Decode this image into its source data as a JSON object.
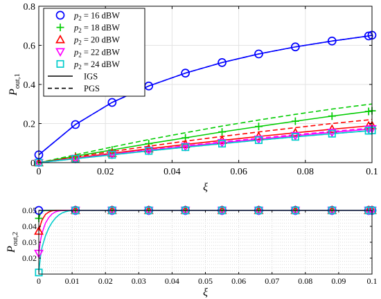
{
  "chart_data": [
    {
      "type": "line",
      "xlabel": "ξ",
      "ylabel": "P_out,1",
      "xlim": [
        0,
        0.1
      ],
      "ylim": [
        0,
        0.8
      ],
      "xticks": [
        "0",
        "0.02",
        "0.04",
        "0.06",
        "0.08",
        "0.1"
      ],
      "yticks": [
        "0",
        "0.2",
        "0.4",
        "0.6",
        "0.8"
      ],
      "grid": true,
      "legend_position": "top-left",
      "legend": [
        {
          "label": "p_2 = 16 dBW",
          "color": "#0000FF",
          "marker": "circle"
        },
        {
          "label": "p_2 = 18 dBW",
          "color": "#00CC00",
          "marker": "plus"
        },
        {
          "label": "p_2 = 20 dBW",
          "color": "#FF0000",
          "marker": "triangle-up"
        },
        {
          "label": "p_2 = 22 dBW",
          "color": "#FF00FF",
          "marker": "triangle-down"
        },
        {
          "label": "p_2 = 24 dBW",
          "color": "#00CCCC",
          "marker": "square"
        },
        {
          "label": "IGS",
          "color": "#000000",
          "line": "solid"
        },
        {
          "label": "PGS",
          "color": "#000000",
          "line": "dashed"
        }
      ],
      "marker_x": [
        0,
        0.011,
        0.022,
        0.033,
        0.044,
        0.055,
        0.066,
        0.077,
        0.088,
        0.099,
        0.1
      ],
      "series": [
        {
          "name": "p_2 = 16 dBW",
          "color": "#0000FF",
          "marker": "circle",
          "igs": [
            0.04,
            0.195,
            0.308,
            0.392,
            0.458,
            0.512,
            0.556,
            0.592,
            0.622,
            0.648,
            0.652
          ],
          "pgs": [
            0.04,
            0.195,
            0.308,
            0.392,
            0.458,
            0.512,
            0.556,
            0.592,
            0.622,
            0.648,
            0.652
          ]
        },
        {
          "name": "p_2 = 18 dBW",
          "color": "#00CC00",
          "marker": "plus",
          "igs": [
            0.0,
            0.033,
            0.065,
            0.097,
            0.127,
            0.157,
            0.185,
            0.212,
            0.238,
            0.262,
            0.265
          ],
          "pgs": [
            0.0,
            0.04,
            0.08,
            0.118,
            0.153,
            0.187,
            0.218,
            0.247,
            0.274,
            0.298,
            0.3
          ]
        },
        {
          "name": "p_2 = 20 dBW",
          "color": "#FF0000",
          "marker": "triangle-up",
          "igs": [
            0.0,
            0.024,
            0.048,
            0.071,
            0.093,
            0.114,
            0.134,
            0.153,
            0.171,
            0.188,
            0.19
          ],
          "pgs": [
            0.0,
            0.029,
            0.057,
            0.084,
            0.11,
            0.134,
            0.157,
            0.179,
            0.2,
            0.219,
            0.221
          ]
        },
        {
          "name": "p_2 = 22 dBW",
          "color": "#FF00FF",
          "marker": "triangle-down",
          "igs": [
            0.0,
            0.021,
            0.042,
            0.063,
            0.083,
            0.102,
            0.12,
            0.138,
            0.155,
            0.171,
            0.173
          ],
          "pgs": [
            0.0,
            0.022,
            0.044,
            0.065,
            0.086,
            0.106,
            0.125,
            0.143,
            0.16,
            0.176,
            0.178
          ]
        },
        {
          "name": "p_2 = 24 dBW",
          "color": "#00CCCC",
          "marker": "square",
          "igs": [
            0.0,
            0.02,
            0.04,
            0.06,
            0.079,
            0.097,
            0.115,
            0.132,
            0.148,
            0.163,
            0.165
          ],
          "pgs": [
            0.0,
            0.02,
            0.04,
            0.06,
            0.079,
            0.097,
            0.115,
            0.132,
            0.148,
            0.163,
            0.165
          ]
        }
      ]
    },
    {
      "type": "line",
      "xlabel": "ξ",
      "ylabel": "P_out,2",
      "xlim": [
        0,
        0.1
      ],
      "ylim": [
        0.01,
        0.05
      ],
      "xticks": [
        "0",
        "0.01",
        "0.02",
        "0.03",
        "0.04",
        "0.05",
        "0.06",
        "0.07",
        "0.08",
        "0.09",
        "0.1"
      ],
      "yticks": [
        "0.02",
        "0.03",
        "0.04",
        "0.05"
      ],
      "grid": true,
      "marker_x": [
        0,
        0.011,
        0.022,
        0.033,
        0.044,
        0.055,
        0.066,
        0.077,
        0.088,
        0.099,
        0.1
      ],
      "series": [
        {
          "name": "p_2 = 16 dBW",
          "color": "#0000FF",
          "marker": "circle",
          "x": [
            0,
            0.0005,
            0.001,
            0.002,
            0.1
          ],
          "y": [
            0.05,
            0.05,
            0.05,
            0.05,
            0.05
          ],
          "marker_y": [
            0.05,
            0.05,
            0.05,
            0.05,
            0.05,
            0.05,
            0.05,
            0.05,
            0.05,
            0.05,
            0.05
          ]
        },
        {
          "name": "p_2 = 18 dBW",
          "color": "#00CC00",
          "marker": "plus",
          "x": [
            0,
            0.0005,
            0.001,
            0.002,
            0.003,
            0.1
          ],
          "y": [
            0.045,
            0.048,
            0.0495,
            0.05,
            0.05,
            0.05
          ],
          "marker_y": [
            0.045,
            0.05,
            0.05,
            0.05,
            0.05,
            0.05,
            0.05,
            0.05,
            0.05,
            0.05,
            0.05
          ]
        },
        {
          "name": "p_2 = 20 dBW",
          "color": "#FF0000",
          "marker": "triangle-up",
          "x": [
            0,
            0.0005,
            0.001,
            0.002,
            0.003,
            0.004,
            0.005,
            0.1
          ],
          "y": [
            0.037,
            0.041,
            0.044,
            0.0475,
            0.049,
            0.0498,
            0.05,
            0.05
          ],
          "marker_y": [
            0.037,
            0.05,
            0.05,
            0.05,
            0.05,
            0.05,
            0.05,
            0.05,
            0.05,
            0.05,
            0.05
          ]
        },
        {
          "name": "p_2 = 22 dBW",
          "color": "#FF00FF",
          "marker": "triangle-down",
          "x": [
            0,
            0.0005,
            0.001,
            0.002,
            0.003,
            0.004,
            0.005,
            0.006,
            0.007,
            0.1
          ],
          "y": [
            0.023,
            0.031,
            0.036,
            0.042,
            0.0455,
            0.0478,
            0.0491,
            0.0497,
            0.05,
            0.05
          ],
          "marker_y": [
            0.023,
            0.05,
            0.05,
            0.05,
            0.05,
            0.05,
            0.05,
            0.05,
            0.05,
            0.05,
            0.05
          ]
        },
        {
          "name": "p_2 = 24 dBW",
          "color": "#00CCCC",
          "marker": "square",
          "x": [
            0,
            0.0005,
            0.001,
            0.002,
            0.003,
            0.004,
            0.005,
            0.006,
            0.007,
            0.008,
            0.009,
            0.01,
            0.1
          ],
          "y": [
            0.011,
            0.021,
            0.027,
            0.034,
            0.039,
            0.0425,
            0.0452,
            0.0471,
            0.0484,
            0.0492,
            0.0497,
            0.05,
            0.05
          ],
          "marker_y": [
            0.011,
            0.05,
            0.05,
            0.05,
            0.05,
            0.05,
            0.05,
            0.05,
            0.05,
            0.05,
            0.05
          ]
        }
      ]
    }
  ]
}
